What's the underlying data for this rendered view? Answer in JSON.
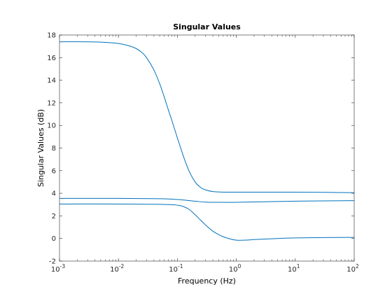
{
  "chart_data": {
    "type": "line",
    "title": "Singular Values",
    "xlabel": "Frequency (Hz)",
    "ylabel": "Singular Values (dB)",
    "x_scale": "log",
    "xlim": [
      0.001,
      100
    ],
    "ylim": [
      -2,
      18
    ],
    "x_ticks": [
      {
        "value": 0.001,
        "base": "10",
        "exp": "-3"
      },
      {
        "value": 0.01,
        "base": "10",
        "exp": "-2"
      },
      {
        "value": 0.1,
        "base": "10",
        "exp": "-1"
      },
      {
        "value": 1,
        "base": "10",
        "exp": "0"
      },
      {
        "value": 10,
        "base": "10",
        "exp": "1"
      },
      {
        "value": 100,
        "base": "10",
        "exp": "2"
      }
    ],
    "y_ticks": [
      -2,
      0,
      2,
      4,
      6,
      8,
      10,
      12,
      14,
      16,
      18
    ],
    "y_tick_labels": [
      "-2",
      "0",
      "2",
      "4",
      "6",
      "8",
      "10",
      "12",
      "14",
      "16",
      "18"
    ],
    "grid": false,
    "line_color": "#0072bd",
    "series": [
      {
        "x": [
          0.001,
          0.003,
          0.006,
          0.01,
          0.015,
          0.02,
          0.025,
          0.03,
          0.04,
          0.05,
          0.06,
          0.07,
          0.08,
          0.1,
          0.13,
          0.16,
          0.2,
          0.25,
          0.3,
          0.4,
          0.6,
          1,
          3,
          10,
          30,
          100
        ],
        "values": [
          17.4,
          17.4,
          17.35,
          17.25,
          17.05,
          16.8,
          16.45,
          16.0,
          14.9,
          13.7,
          12.5,
          11.4,
          10.5,
          8.9,
          7.1,
          5.9,
          5.0,
          4.5,
          4.3,
          4.15,
          4.1,
          4.1,
          4.1,
          4.1,
          4.08,
          4.05
        ]
      },
      {
        "x": [
          0.001,
          0.01,
          0.05,
          0.1,
          0.2,
          0.3,
          0.5,
          1,
          3,
          10,
          100
        ],
        "values": [
          3.55,
          3.55,
          3.52,
          3.45,
          3.3,
          3.22,
          3.2,
          3.2,
          3.25,
          3.3,
          3.35
        ]
      },
      {
        "x": [
          0.001,
          0.01,
          0.05,
          0.1,
          0.13,
          0.16,
          0.2,
          0.25,
          0.3,
          0.4,
          0.5,
          0.6,
          0.8,
          1,
          1.3,
          2,
          3,
          5,
          10,
          30,
          100
        ],
        "values": [
          3.05,
          3.05,
          3.02,
          2.95,
          2.8,
          2.55,
          2.1,
          1.6,
          1.2,
          0.65,
          0.35,
          0.15,
          -0.05,
          -0.15,
          -0.15,
          -0.1,
          -0.05,
          0.0,
          0.05,
          0.08,
          0.1
        ]
      }
    ]
  }
}
